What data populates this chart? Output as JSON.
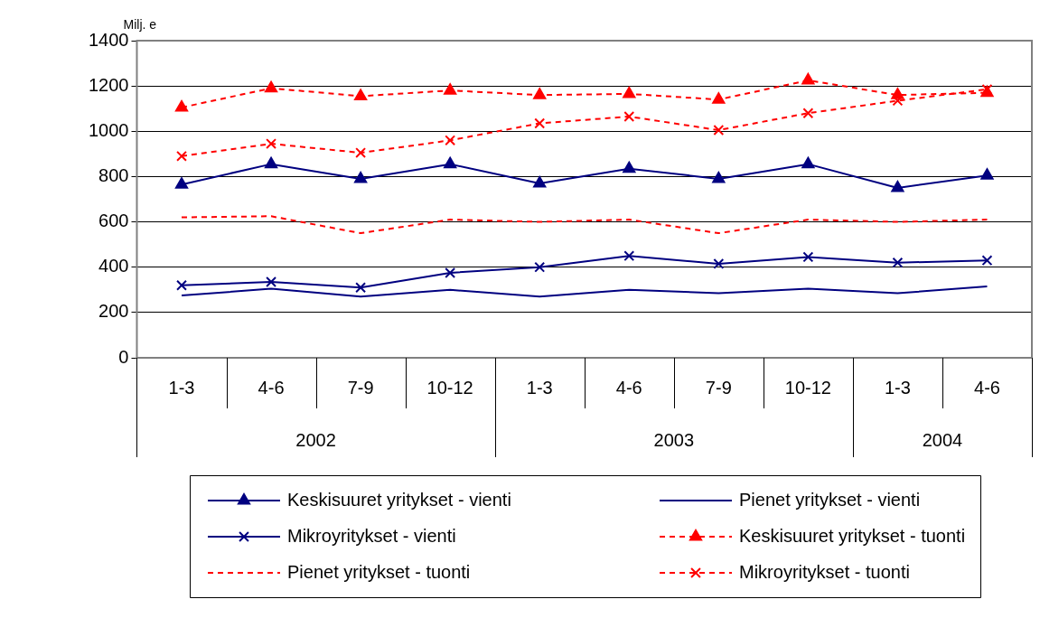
{
  "chart_data": {
    "type": "line",
    "ylabel": "Milj. e",
    "categories": [
      "1-3",
      "4-6",
      "7-9",
      "10-12",
      "1-3",
      "4-6",
      "7-9",
      "10-12",
      "1-3",
      "4-6"
    ],
    "annotations": [
      "2002",
      "2003",
      "2004"
    ],
    "ylim": [
      0,
      1400
    ],
    "yticks": [
      0,
      200,
      400,
      600,
      800,
      1000,
      1200,
      1400
    ],
    "grid": "y",
    "legend": "bottom",
    "series": [
      {
        "name": "Keskisuuret yritykset - vienti",
        "color": "#000080",
        "marker": "triangle",
        "line_style": "solid",
        "values": [
          765,
          855,
          790,
          855,
          770,
          835,
          790,
          855,
          750,
          805
        ]
      },
      {
        "name": "Pienet yritykset - vienti",
        "color": "#000080",
        "marker": "none",
        "line_style": "solid",
        "values": [
          275,
          305,
          270,
          300,
          270,
          300,
          285,
          305,
          285,
          315
        ]
      },
      {
        "name": "Mikroyritykset - vienti",
        "color": "#000080",
        "marker": "cross",
        "line_style": "solid",
        "values": [
          320,
          335,
          310,
          375,
          400,
          450,
          415,
          445,
          420,
          430
        ]
      },
      {
        "name": "Keskisuuret yritykset - tuonti",
        "color": "#ff0000",
        "marker": "triangle",
        "line_style": "dashed",
        "values": [
          1105,
          1190,
          1155,
          1180,
          1160,
          1165,
          1140,
          1225,
          1160,
          1170
        ]
      },
      {
        "name": "Pienet yritykset - tuonti",
        "color": "#ff0000",
        "marker": "none",
        "line_style": "dashed",
        "values": [
          620,
          625,
          550,
          610,
          600,
          610,
          550,
          610,
          600,
          610
        ]
      },
      {
        "name": "Mikroyritykset - tuonti",
        "color": "#ff0000",
        "marker": "cross",
        "line_style": "dashed",
        "values": [
          890,
          945,
          905,
          960,
          1035,
          1065,
          1005,
          1080,
          1135,
          1185
        ]
      }
    ]
  }
}
